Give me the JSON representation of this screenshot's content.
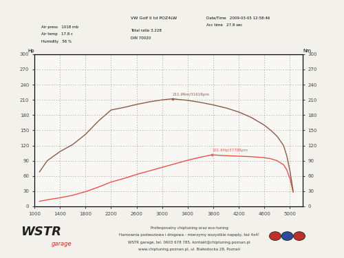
{
  "chart_data": {
    "type": "line",
    "title": "VW Golf II td POZ4LW",
    "header": {
      "left": [
        "Air press   1018 mb",
        "Air temp   17.8 c",
        "Humidity   56 %"
      ],
      "middle": [
        "Total ratio 3.228",
        "DIN 70020"
      ],
      "right": [
        "Date/Time   2009-03-05 12:58:46",
        "Acc time   27.8 sec"
      ]
    },
    "ylabel": "Hp",
    "y2label": "Nm",
    "xlim": [
      1000,
      5200
    ],
    "xticks": [
      1000,
      1400,
      1800,
      2200,
      2600,
      3000,
      3400,
      3800,
      4200,
      4600,
      5000
    ],
    "ylim": [
      0,
      300
    ],
    "yticks": [
      0,
      30,
      60,
      90,
      120,
      150,
      180,
      210,
      240,
      270,
      300
    ],
    "y2lim": [
      0,
      300
    ],
    "y2ticks": [
      0,
      30,
      60,
      90,
      120,
      150,
      180,
      210,
      240,
      270,
      300
    ],
    "grid": true,
    "series": [
      {
        "name": "Nm",
        "color": "#8b5a4a",
        "axis": "y2",
        "x": [
          1080,
          1200,
          1400,
          1600,
          1800,
          2000,
          2200,
          2400,
          2600,
          2800,
          3000,
          3161,
          3400,
          3600,
          3800,
          4000,
          4200,
          4400,
          4600,
          4700,
          4800,
          4900,
          4950,
          5000,
          5050
        ],
        "values": [
          68,
          90,
          108,
          122,
          142,
          168,
          190,
          195,
          201,
          206,
          210,
          212,
          209,
          205,
          200,
          194,
          186,
          175,
          160,
          150,
          138,
          120,
          100,
          70,
          30
        ]
      },
      {
        "name": "Hp",
        "color": "#e8504a",
        "axis": "y",
        "x": [
          1080,
          1200,
          1400,
          1600,
          1800,
          2000,
          2200,
          2400,
          2600,
          2800,
          3000,
          3200,
          3400,
          3600,
          3778,
          4000,
          4200,
          4400,
          4600,
          4700,
          4800,
          4900,
          4950,
          5000,
          5050
        ],
        "values": [
          10,
          13,
          17,
          22,
          29,
          38,
          48,
          55,
          63,
          70,
          77,
          84,
          91,
          97,
          101.6,
          100,
          99,
          98,
          96,
          94,
          90,
          82,
          72,
          55,
          28
        ]
      }
    ],
    "annotations": [
      {
        "text": "211.9Nm/3161Rpm",
        "x": 3161,
        "y": 211.9,
        "axis": "y2",
        "color": "#8b5a4a"
      },
      {
        "text": "101.6Hp/3778Rpm",
        "x": 3778,
        "y": 101.6,
        "axis": "y",
        "color": "#e8504a"
      }
    ],
    "footer": [
      "Profesjonalny chiptuning oraz eco-tuning",
      "Hamownia podwoziowa i drogowa - mierzymy wszystkie napędy, też 4x4!",
      "WSTR garage, tel. 0603 678 785, kontakt@chiptuning.poznan.pl",
      "www.chiptuning.poznan.pl, ul. Białostocka 28, Poznań"
    ],
    "logo": [
      "WSTR",
      "garage"
    ]
  }
}
